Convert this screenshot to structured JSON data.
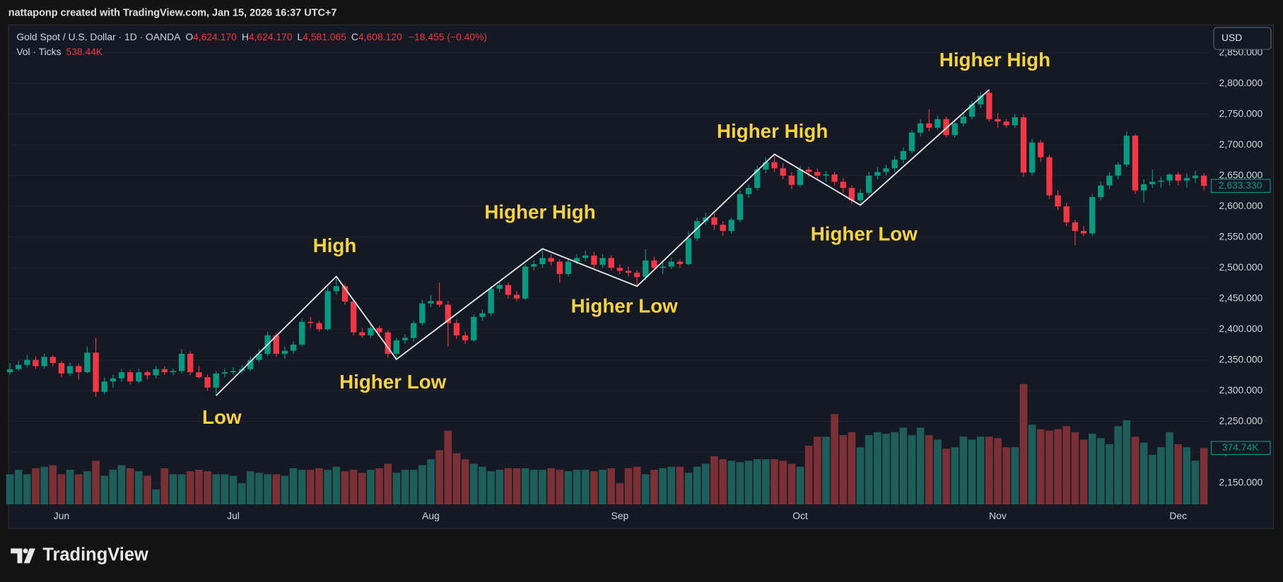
{
  "credit": "nattaponp created with TradingView.com, Jan 15, 2026 16:37 UTC+7",
  "legend": {
    "symbol": "Gold Spot / U.S. Dollar · 1D · OANDA",
    "open_label": "O",
    "open": "4,624.170",
    "high_label": "H",
    "high": "4,624.170",
    "low_label": "L",
    "low": "4,581.065",
    "close_label": "C",
    "close": "4,608.120",
    "change": "−18.455 (−0.40%)",
    "volume_label": "Vol · Ticks",
    "volume": "538.44K"
  },
  "currency": "USD",
  "brand": "TradingView",
  "chart_data": {
    "type": "candlestick",
    "up_color": "#089981",
    "down_color": "#f23645",
    "volume_up_color": "#1d5e5a",
    "volume_down_color": "#7a3035",
    "trend_color": "#e6e6e6",
    "annotation_color": "#f5d33f",
    "ylim": [
      2115,
      2896
    ],
    "yticks": [
      {
        "value": 2150,
        "label": "2,150.000"
      },
      {
        "value": 2200,
        "label": "2,200.000"
      },
      {
        "value": 2250,
        "label": "2,250.000"
      },
      {
        "value": 2300,
        "label": "2,300.000"
      },
      {
        "value": 2350,
        "label": "2,350.000"
      },
      {
        "value": 2400,
        "label": "2,400.000"
      },
      {
        "value": 2450,
        "label": "2,450.000"
      },
      {
        "value": 2500,
        "label": "2,500.000"
      },
      {
        "value": 2550,
        "label": "2,550.000"
      },
      {
        "value": 2600,
        "label": "2,600.000"
      },
      {
        "value": 2650,
        "label": "2,650.000"
      },
      {
        "value": 2700,
        "label": "2,700.000"
      },
      {
        "value": 2750,
        "label": "2,750.000"
      },
      {
        "value": 2800,
        "label": "2,800.000"
      },
      {
        "value": 2850,
        "label": "2,850.000"
      }
    ],
    "grid": true,
    "volume_lim": [
      0,
      3190
    ],
    "last_price": {
      "value": 2633.33,
      "label": "2,633.330"
    },
    "volume_tag": {
      "value": 374.74,
      "label": "374.74K"
    },
    "categories": [
      null,
      null,
      null,
      null,
      null,
      null,
      "Jun",
      null,
      null,
      null,
      null,
      null,
      null,
      null,
      null,
      null,
      null,
      null,
      null,
      null,
      null,
      null,
      null,
      null,
      null,
      null,
      "Jul",
      null,
      null,
      null,
      null,
      null,
      null,
      null,
      null,
      null,
      null,
      null,
      null,
      null,
      null,
      null,
      null,
      null,
      null,
      null,
      null,
      null,
      null,
      "Aug",
      null,
      null,
      null,
      null,
      null,
      null,
      null,
      null,
      null,
      null,
      null,
      null,
      null,
      null,
      null,
      null,
      null,
      null,
      null,
      null,
      null,
      "Sep",
      null,
      null,
      null,
      null,
      null,
      null,
      null,
      null,
      null,
      null,
      null,
      null,
      null,
      null,
      null,
      null,
      null,
      null,
      null,
      null,
      "Oct",
      null,
      null,
      null,
      null,
      null,
      null,
      null,
      null,
      null,
      null,
      null,
      null,
      null,
      null,
      null,
      null,
      null,
      null,
      null,
      null,
      null,
      null,
      "Nov",
      null,
      null,
      null,
      null,
      null,
      null,
      null,
      null,
      null,
      null,
      null,
      null,
      null,
      null,
      null,
      null,
      null,
      null,
      null,
      null,
      "Dec",
      null,
      null,
      null
    ],
    "ohlc": [
      [
        2330,
        2345,
        2326,
        2335
      ],
      [
        2335,
        2348,
        2332,
        2342
      ],
      [
        2342,
        2358,
        2338,
        2350
      ],
      [
        2350,
        2356,
        2335,
        2340
      ],
      [
        2340,
        2360,
        2336,
        2355
      ],
      [
        2355,
        2358,
        2340,
        2345
      ],
      [
        2345,
        2348,
        2322,
        2328
      ],
      [
        2328,
        2346,
        2324,
        2340
      ],
      [
        2340,
        2344,
        2318,
        2330
      ],
      [
        2330,
        2372,
        2328,
        2362
      ],
      [
        2362,
        2386,
        2290,
        2298
      ],
      [
        2298,
        2322,
        2294,
        2315
      ],
      [
        2315,
        2326,
        2305,
        2320
      ],
      [
        2320,
        2335,
        2314,
        2330
      ],
      [
        2330,
        2334,
        2310,
        2315
      ],
      [
        2315,
        2336,
        2312,
        2330
      ],
      [
        2330,
        2333,
        2318,
        2325
      ],
      [
        2325,
        2340,
        2320,
        2335
      ],
      [
        2335,
        2340,
        2326,
        2330
      ],
      [
        2330,
        2336,
        2325,
        2332
      ],
      [
        2332,
        2368,
        2328,
        2360
      ],
      [
        2360,
        2364,
        2325,
        2330
      ],
      [
        2330,
        2340,
        2320,
        2322
      ],
      [
        2322,
        2326,
        2300,
        2305
      ],
      [
        2305,
        2332,
        2292,
        2328
      ],
      [
        2328,
        2336,
        2322,
        2330
      ],
      [
        2330,
        2338,
        2326,
        2332
      ],
      [
        2332,
        2342,
        2328,
        2335
      ],
      [
        2335,
        2356,
        2332,
        2350
      ],
      [
        2350,
        2368,
        2346,
        2360
      ],
      [
        2360,
        2396,
        2356,
        2390
      ],
      [
        2390,
        2394,
        2355,
        2360
      ],
      [
        2360,
        2372,
        2352,
        2365
      ],
      [
        2365,
        2380,
        2360,
        2375
      ],
      [
        2375,
        2418,
        2372,
        2412
      ],
      [
        2412,
        2420,
        2402,
        2410
      ],
      [
        2410,
        2414,
        2396,
        2400
      ],
      [
        2400,
        2468,
        2398,
        2462
      ],
      [
        2462,
        2486,
        2456,
        2470
      ],
      [
        2470,
        2474,
        2440,
        2445
      ],
      [
        2445,
        2448,
        2390,
        2395
      ],
      [
        2395,
        2402,
        2386,
        2390
      ],
      [
        2390,
        2408,
        2386,
        2402
      ],
      [
        2402,
        2406,
        2388,
        2395
      ],
      [
        2395,
        2398,
        2354,
        2360
      ],
      [
        2360,
        2386,
        2351,
        2382
      ],
      [
        2382,
        2392,
        2376,
        2386
      ],
      [
        2386,
        2414,
        2380,
        2410
      ],
      [
        2410,
        2448,
        2406,
        2442
      ],
      [
        2442,
        2456,
        2436,
        2446
      ],
      [
        2446,
        2476,
        2436,
        2440
      ],
      [
        2440,
        2446,
        2372,
        2410
      ],
      [
        2410,
        2416,
        2384,
        2390
      ],
      [
        2390,
        2396,
        2376,
        2382
      ],
      [
        2382,
        2424,
        2380,
        2420
      ],
      [
        2420,
        2432,
        2414,
        2426
      ],
      [
        2426,
        2470,
        2422,
        2466
      ],
      [
        2466,
        2478,
        2460,
        2472
      ],
      [
        2472,
        2476,
        2450,
        2456
      ],
      [
        2456,
        2462,
        2446,
        2450
      ],
      [
        2450,
        2506,
        2448,
        2502
      ],
      [
        2502,
        2512,
        2496,
        2506
      ],
      [
        2506,
        2531,
        2500,
        2516
      ],
      [
        2516,
        2522,
        2504,
        2510
      ],
      [
        2510,
        2514,
        2476,
        2490
      ],
      [
        2490,
        2514,
        2486,
        2510
      ],
      [
        2510,
        2522,
        2506,
        2516
      ],
      [
        2516,
        2528,
        2510,
        2520
      ],
      [
        2520,
        2526,
        2500,
        2505
      ],
      [
        2505,
        2522,
        2500,
        2516
      ],
      [
        2516,
        2520,
        2496,
        2500
      ],
      [
        2500,
        2506,
        2490,
        2495
      ],
      [
        2495,
        2502,
        2486,
        2492
      ],
      [
        2492,
        2496,
        2470,
        2485
      ],
      [
        2485,
        2530,
        2480,
        2512
      ],
      [
        2512,
        2518,
        2496,
        2500
      ],
      [
        2500,
        2510,
        2490,
        2502
      ],
      [
        2502,
        2516,
        2498,
        2510
      ],
      [
        2510,
        2514,
        2500,
        2506
      ],
      [
        2506,
        2560,
        2504,
        2548
      ],
      [
        2548,
        2582,
        2544,
        2576
      ],
      [
        2576,
        2590,
        2570,
        2582
      ],
      [
        2582,
        2588,
        2562,
        2570
      ],
      [
        2570,
        2576,
        2552,
        2560
      ],
      [
        2560,
        2582,
        2556,
        2578
      ],
      [
        2578,
        2626,
        2574,
        2620
      ],
      [
        2620,
        2636,
        2614,
        2630
      ],
      [
        2630,
        2666,
        2626,
        2660
      ],
      [
        2660,
        2680,
        2654,
        2672
      ],
      [
        2672,
        2685,
        2656,
        2662
      ],
      [
        2662,
        2670,
        2644,
        2650
      ],
      [
        2650,
        2656,
        2628,
        2635
      ],
      [
        2635,
        2666,
        2632,
        2660
      ],
      [
        2660,
        2664,
        2648,
        2656
      ],
      [
        2656,
        2662,
        2644,
        2650
      ],
      [
        2650,
        2658,
        2640,
        2652
      ],
      [
        2652,
        2656,
        2634,
        2640
      ],
      [
        2640,
        2646,
        2622,
        2630
      ],
      [
        2630,
        2634,
        2604,
        2610
      ],
      [
        2610,
        2628,
        2602,
        2622
      ],
      [
        2622,
        2656,
        2618,
        2650
      ],
      [
        2650,
        2664,
        2644,
        2656
      ],
      [
        2656,
        2668,
        2650,
        2662
      ],
      [
        2662,
        2682,
        2656,
        2676
      ],
      [
        2676,
        2696,
        2670,
        2690
      ],
      [
        2690,
        2724,
        2686,
        2720
      ],
      [
        2720,
        2742,
        2714,
        2735
      ],
      [
        2735,
        2758,
        2722,
        2728
      ],
      [
        2728,
        2748,
        2724,
        2742
      ],
      [
        2742,
        2746,
        2712,
        2716
      ],
      [
        2716,
        2740,
        2712,
        2735
      ],
      [
        2735,
        2752,
        2730,
        2746
      ],
      [
        2746,
        2772,
        2742,
        2766
      ],
      [
        2766,
        2786,
        2760,
        2780
      ],
      [
        2785,
        2790,
        2738,
        2742
      ],
      [
        2742,
        2752,
        2728,
        2738
      ],
      [
        2738,
        2742,
        2728,
        2732
      ],
      [
        2732,
        2750,
        2728,
        2745
      ],
      [
        2745,
        2750,
        2648,
        2655
      ],
      [
        2655,
        2710,
        2650,
        2704
      ],
      [
        2704,
        2708,
        2672,
        2680
      ],
      [
        2680,
        2684,
        2612,
        2618
      ],
      [
        2618,
        2626,
        2594,
        2600
      ],
      [
        2600,
        2606,
        2568,
        2574
      ],
      [
        2574,
        2578,
        2537,
        2560
      ],
      [
        2560,
        2568,
        2552,
        2556
      ],
      [
        2556,
        2620,
        2552,
        2615
      ],
      [
        2615,
        2640,
        2610,
        2634
      ],
      [
        2634,
        2656,
        2628,
        2650
      ],
      [
        2650,
        2672,
        2644,
        2668
      ],
      [
        2668,
        2722,
        2664,
        2715
      ],
      [
        2715,
        2718,
        2620,
        2626
      ],
      [
        2626,
        2644,
        2606,
        2636
      ],
      [
        2636,
        2660,
        2630,
        2640
      ],
      [
        2640,
        2648,
        2630,
        2642
      ],
      [
        2642,
        2654,
        2634,
        2652
      ],
      [
        2652,
        2656,
        2634,
        2642
      ],
      [
        2642,
        2654,
        2630,
        2646
      ],
      [
        2646,
        2658,
        2638,
        2650
      ],
      [
        2650,
        2654,
        2626,
        2633.33
      ]
    ],
    "volume": [
      200,
      230,
      200,
      240,
      250,
      260,
      200,
      230,
      200,
      220,
      290,
      190,
      230,
      260,
      240,
      220,
      190,
      100,
      240,
      200,
      200,
      220,
      230,
      220,
      200,
      200,
      190,
      140,
      220,
      210,
      200,
      200,
      190,
      240,
      230,
      230,
      240,
      230,
      250,
      220,
      230,
      210,
      230,
      240,
      270,
      210,
      230,
      230,
      260,
      300,
      360,
      490,
      340,
      300,
      270,
      250,
      220,
      230,
      240,
      240,
      240,
      230,
      230,
      240,
      230,
      220,
      230,
      230,
      220,
      230,
      240,
      140,
      240,
      250,
      200,
      230,
      240,
      250,
      250,
      210,
      250,
      270,
      320,
      300,
      290,
      280,
      290,
      300,
      300,
      300,
      290,
      270,
      250,
      390,
      450,
      450,
      600,
      460,
      480,
      380,
      460,
      480,
      470,
      480,
      510,
      460,
      510,
      460,
      430,
      370,
      380,
      450,
      430,
      450,
      450,
      440,
      380,
      380,
      800,
      530,
      500,
      490,
      500,
      520,
      480,
      430,
      470,
      440,
      400,
      520,
      560,
      450,
      410,
      330,
      380,
      480,
      400,
      380,
      290,
      374.74
    ],
    "trend_line": {
      "x": [
        24,
        38,
        45,
        62,
        73,
        89,
        99,
        114
      ],
      "y": [
        2292,
        2486,
        2351,
        2531,
        2470,
        2685,
        2602,
        2790
      ]
    },
    "annotations": [
      "Low",
      "High",
      "Higher Low",
      "Higher High",
      "Higher Low",
      "Higher High",
      "Higher Low",
      "Higher High"
    ]
  }
}
